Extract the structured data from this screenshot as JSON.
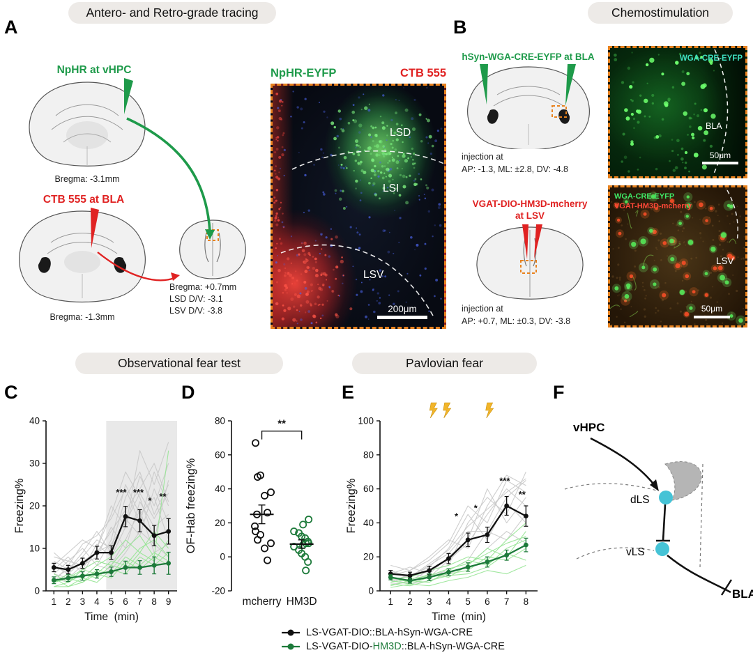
{
  "headers": {
    "tracing": "Antero- and Retro-grade tracing",
    "chemostimulation": "Chemostimulation",
    "observational": "Observational fear test",
    "pavlovian": "Pavlovian fear"
  },
  "colors": {
    "dashed_box_orange": "#e8821e",
    "green_label": "#1e9a4a",
    "red_label": "#e02222",
    "circuit_node_cyan": "#45c3d6",
    "shock_bolt_yellow": "#f2b52a"
  },
  "panelA": {
    "label": "A",
    "injection1": {
      "title": "NpHR at vHPC",
      "bregma": "Bregma: -3.1mm"
    },
    "injection2": {
      "title": "CTB 555 at BLA",
      "bregma": "Bregma: -1.3mm"
    },
    "target": {
      "line1": "Bregma: +0.7mm",
      "line2": "LSD D/V: -3.1",
      "line3": "LSV D/V: -3.8"
    },
    "micrograph": {
      "label_green": "NpHR-EYFP",
      "label_red": "CTB 555",
      "region1": "LSD",
      "region2": "LSI",
      "region3": "LSV",
      "scalebar": "200μm"
    }
  },
  "panelB": {
    "label": "B",
    "injection1": {
      "title": "hSyn-WGA-CRE-EYFP at BLA",
      "coords_label": "injection at",
      "coords": "AP: -1.3, ML: ±2.8, DV: -4.8"
    },
    "micrograph1": {
      "label": "WGA-CRE-EYFP",
      "region": "BLA",
      "scalebar": "50μm"
    },
    "injection2": {
      "title_line1": "VGAT-DIO-HM3D-mcherry",
      "title_line2": "at LSV",
      "coords_label": "injection at",
      "coords": "AP: +0.7, ML: ±0.3, DV: -3.8"
    },
    "micrograph2": {
      "label_green": "WGA-CRE-EYFP",
      "label_red": "VGAT-HM3D-mcherry",
      "region": "LSV",
      "scalebar": "50μm"
    }
  },
  "panelC": {
    "label": "C"
  },
  "panelD": {
    "label": "D"
  },
  "panelE": {
    "label": "E"
  },
  "panelF": {
    "label": "F",
    "nodes": {
      "input": "vHPC",
      "node1": "dLS",
      "node2": "vLS",
      "output": "BLA"
    }
  },
  "legend": {
    "entry1": {
      "text": "LS-VGAT-DIO::BLA-hSyn-WGA-CRE",
      "color": "#111111"
    },
    "entry2": {
      "prefix": "LS-VGAT-DIO-",
      "highlight": "HM3D",
      "suffix": "::BLA-hSyn-WGA-CRE",
      "color": "#1d7a3a"
    }
  },
  "chart_data": [
    {
      "id": "panelC",
      "type": "line",
      "ylabel": "Freezing%",
      "xlabel": "Time  (min)",
      "x": [
        1,
        2,
        3,
        4,
        5,
        6,
        7,
        8,
        9
      ],
      "xlim": [
        0.45,
        9.6
      ],
      "ylim": [
        0,
        40
      ],
      "yticks": [
        0,
        10,
        20,
        30,
        40
      ],
      "shaded_region": {
        "x0": 4.65,
        "x1": 9.6
      },
      "series": [
        {
          "name": "LS-VGAT-DIO::BLA-hSyn-WGA-CRE",
          "color": "#111111",
          "values": [
            5.5,
            5,
            6.5,
            9,
            9,
            17.5,
            16.5,
            13,
            14
          ],
          "errors": [
            1,
            1,
            1.2,
            1.5,
            1.6,
            2.4,
            2.6,
            2.4,
            3
          ]
        },
        {
          "name": "LS-VGAT-DIO-HM3D::BLA-hSyn-WGA-CRE",
          "color": "#1d7a3a",
          "values": [
            2.5,
            3,
            3.5,
            4,
            4.5,
            5.5,
            5.5,
            6,
            6.5
          ],
          "errors": [
            0.8,
            0.8,
            1,
            1,
            1.1,
            1.5,
            1.6,
            2,
            2.6
          ]
        }
      ],
      "individual_traces": {
        "gray": [
          [
            3,
            5,
            8,
            12,
            10,
            22,
            28,
            18,
            25
          ],
          [
            6,
            4,
            7,
            9,
            14,
            19,
            24,
            30,
            21
          ],
          [
            2,
            6,
            5,
            11,
            8,
            15,
            33,
            25,
            35
          ],
          [
            8,
            7,
            10,
            6,
            12,
            25,
            18,
            22,
            12
          ],
          [
            4,
            3,
            6,
            8,
            15,
            10,
            21,
            15,
            18
          ],
          [
            5,
            8,
            4,
            10,
            18,
            28,
            22,
            12,
            26
          ],
          [
            7,
            5,
            9,
            14,
            9,
            17,
            13,
            24,
            16
          ],
          [
            3,
            2,
            5,
            7,
            6,
            12,
            19,
            9,
            11
          ],
          [
            6,
            9,
            12,
            10,
            20,
            15,
            27,
            20,
            30
          ],
          [
            2,
            4,
            3,
            6,
            5,
            9,
            14,
            11,
            8
          ],
          [
            9,
            6,
            11,
            13,
            17,
            24,
            16,
            28,
            20
          ],
          [
            4,
            7,
            6,
            9,
            11,
            16,
            23,
            17,
            23
          ]
        ],
        "green": [
          [
            2,
            3,
            2,
            5,
            4,
            8,
            6,
            9,
            7
          ],
          [
            1,
            2,
            4,
            3,
            6,
            5,
            9,
            7,
            12
          ],
          [
            3,
            1,
            2,
            4,
            3,
            7,
            5,
            8,
            6
          ],
          [
            2,
            4,
            3,
            6,
            8,
            12,
            9,
            14,
            10
          ],
          [
            1,
            1,
            3,
            2,
            5,
            4,
            8,
            6,
            9
          ],
          [
            4,
            2,
            5,
            7,
            6,
            10,
            13,
            8,
            33
          ],
          [
            2,
            3,
            5,
            4,
            7,
            6,
            10,
            12,
            8
          ]
        ]
      },
      "significance": [
        {
          "x": 5.7,
          "y": 22.5,
          "text": "***"
        },
        {
          "x": 6.9,
          "y": 22.5,
          "text": "***"
        },
        {
          "x": 7.7,
          "y": 20.5,
          "text": "*"
        },
        {
          "x": 8.6,
          "y": 21.5,
          "text": "**"
        }
      ]
    },
    {
      "id": "panelD",
      "type": "scatter",
      "ylabel": "OF-Hab freezing%",
      "ylim": [
        -20,
        80
      ],
      "yticks": [
        -20,
        0,
        20,
        40,
        60,
        80
      ],
      "groups": [
        {
          "name": "mcherry",
          "color": "#111111",
          "mean": 25,
          "sem": 5.5,
          "values": [
            67,
            48,
            47,
            38,
            36,
            26,
            25,
            18,
            15,
            13,
            10,
            8,
            5,
            -2
          ]
        },
        {
          "name": "HM3D",
          "color": "#1d7a3a",
          "mean": 7.5,
          "sem": 2.5,
          "values": [
            22,
            19,
            15,
            14,
            12,
            11,
            9,
            8,
            8,
            7,
            6,
            4,
            2,
            0,
            -3,
            -8
          ]
        }
      ],
      "significance": {
        "text": "**",
        "y": 74
      }
    },
    {
      "id": "panelE",
      "type": "line",
      "ylabel": "Freezing%",
      "xlabel": "Time  (min)",
      "x": [
        1,
        2,
        3,
        4,
        5,
        6,
        7,
        8
      ],
      "xlim": [
        0.45,
        8.6
      ],
      "ylim": [
        0,
        100
      ],
      "yticks": [
        0,
        20,
        40,
        60,
        80,
        100
      ],
      "stim_bolts_x": [
        3.2,
        3.9,
        6.1
      ],
      "bolt_color": "#f2b52a",
      "series": [
        {
          "name": "LS-VGAT-DIO::BLA-hSyn-WGA-CRE",
          "color": "#111111",
          "values": [
            10,
            9,
            12,
            19,
            30,
            33,
            50,
            44
          ],
          "errors": [
            2,
            2,
            2.5,
            3,
            4,
            4.5,
            5.5,
            6
          ]
        },
        {
          "name": "LS-VGAT-DIO-HM3D::BLA-hSyn-WGA-CRE",
          "color": "#1d7a3a",
          "values": [
            8,
            6,
            8,
            11,
            14,
            17,
            21,
            27
          ],
          "errors": [
            1.5,
            1.5,
            2,
            2,
            2.5,
            3,
            3,
            4
          ]
        }
      ],
      "individual_traces": {
        "gray": [
          [
            12,
            8,
            15,
            22,
            35,
            35,
            55,
            65
          ],
          [
            5,
            10,
            8,
            18,
            28,
            45,
            60,
            50
          ],
          [
            8,
            6,
            12,
            15,
            40,
            55,
            45,
            70
          ],
          [
            15,
            12,
            20,
            30,
            25,
            50,
            68,
            62
          ],
          [
            6,
            9,
            14,
            25,
            45,
            30,
            52,
            40
          ],
          [
            10,
            14,
            10,
            20,
            30,
            60,
            40,
            55
          ],
          [
            4,
            5,
            9,
            12,
            18,
            35,
            30,
            45
          ],
          [
            9,
            12,
            18,
            28,
            50,
            40,
            65,
            58
          ],
          [
            7,
            4,
            6,
            10,
            15,
            25,
            35,
            28
          ],
          [
            11,
            8,
            16,
            24,
            38,
            48,
            58,
            66
          ]
        ],
        "green": [
          [
            6,
            4,
            8,
            10,
            12,
            20,
            18,
            25
          ],
          [
            3,
            6,
            5,
            12,
            18,
            15,
            25,
            30
          ],
          [
            8,
            5,
            10,
            8,
            15,
            25,
            20,
            35
          ],
          [
            4,
            3,
            6,
            9,
            10,
            14,
            22,
            18
          ],
          [
            7,
            8,
            12,
            15,
            20,
            18,
            30,
            40
          ],
          [
            2,
            4,
            3,
            6,
            8,
            12,
            10,
            15
          ],
          [
            5,
            7,
            9,
            13,
            16,
            22,
            28,
            32
          ]
        ]
      },
      "significance": [
        {
          "x": 4.4,
          "y": 42,
          "text": "*"
        },
        {
          "x": 5.4,
          "y": 47,
          "text": "*"
        },
        {
          "x": 6.9,
          "y": 63,
          "text": "***"
        },
        {
          "x": 7.8,
          "y": 55,
          "text": "**"
        }
      ]
    }
  ]
}
